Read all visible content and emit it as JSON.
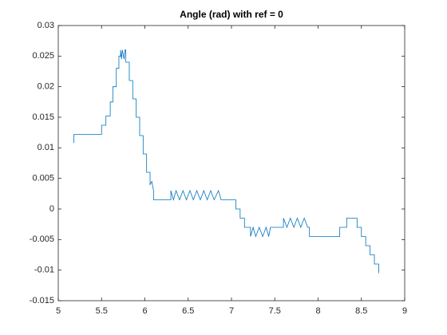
{
  "chart_data": {
    "type": "line",
    "title": "Angle (rad) with ref = 0",
    "x": [
      5.18,
      5.18,
      5.5,
      5.5,
      5.55,
      5.55,
      5.6,
      5.6,
      5.63,
      5.63,
      5.67,
      5.67,
      5.7,
      5.7,
      5.72,
      5.72,
      5.73,
      5.74,
      5.76,
      5.77,
      5.78,
      5.78,
      5.82,
      5.82,
      5.86,
      5.86,
      5.9,
      5.9,
      5.94,
      5.94,
      5.98,
      5.98,
      6.02,
      6.02,
      6.06,
      6.06,
      6.08,
      6.1,
      6.1,
      6.3,
      6.3,
      6.33,
      6.36,
      6.4,
      6.44,
      6.48,
      6.52,
      6.56,
      6.6,
      6.64,
      6.68,
      6.72,
      6.76,
      6.8,
      6.85,
      6.88,
      7.05,
      7.05,
      7.1,
      7.1,
      7.15,
      7.15,
      7.22,
      7.22,
      7.25,
      7.28,
      7.32,
      7.36,
      7.4,
      7.43,
      7.45,
      7.6,
      7.6,
      7.64,
      7.68,
      7.72,
      7.76,
      7.8,
      7.84,
      7.88,
      7.9,
      7.9,
      8.25,
      8.25,
      8.33,
      8.33,
      8.45,
      8.45,
      8.5,
      8.5,
      8.55,
      8.55,
      8.6,
      8.6,
      8.65,
      8.65,
      8.7,
      8.7
    ],
    "series": [
      {
        "color": "#0072bd",
        "values": [
          0.0108,
          0.0122,
          0.0122,
          0.0137,
          0.0137,
          0.0152,
          0.0152,
          0.0175,
          0.0175,
          0.02,
          0.02,
          0.023,
          0.023,
          0.025,
          0.025,
          0.026,
          0.0245,
          0.026,
          0.0245,
          0.026,
          0.026,
          0.024,
          0.024,
          0.021,
          0.021,
          0.018,
          0.018,
          0.015,
          0.015,
          0.012,
          0.012,
          0.009,
          0.009,
          0.006,
          0.006,
          0.004,
          0.0045,
          0.003,
          0.0015,
          0.0015,
          0.003,
          0.0015,
          0.003,
          0.0015,
          0.003,
          0.0015,
          0.003,
          0.0015,
          0.003,
          0.0015,
          0.003,
          0.0015,
          0.003,
          0.0015,
          0.003,
          0.0015,
          0.0015,
          0,
          0,
          -0.0015,
          -0.0015,
          -0.003,
          -0.003,
          -0.0045,
          -0.003,
          -0.0045,
          -0.003,
          -0.0045,
          -0.003,
          -0.0045,
          -0.003,
          -0.003,
          -0.0015,
          -0.003,
          -0.0015,
          -0.003,
          -0.0015,
          -0.003,
          -0.0015,
          -0.003,
          -0.003,
          -0.0045,
          -0.0045,
          -0.003,
          -0.003,
          -0.0015,
          -0.0015,
          -0.003,
          -0.003,
          -0.0045,
          -0.0045,
          -0.006,
          -0.006,
          -0.0075,
          -0.0075,
          -0.009,
          -0.009,
          -0.0105
        ]
      }
    ],
    "xlim": [
      5,
      9
    ],
    "xticks": [
      5,
      5.5,
      6,
      6.5,
      7,
      7.5,
      8,
      8.5,
      9
    ],
    "ylim": [
      -0.015,
      0.03
    ],
    "yticks": [
      -0.015,
      -0.01,
      -0.005,
      0,
      0.005,
      0.01,
      0.015,
      0.02,
      0.025,
      0.03
    ]
  }
}
